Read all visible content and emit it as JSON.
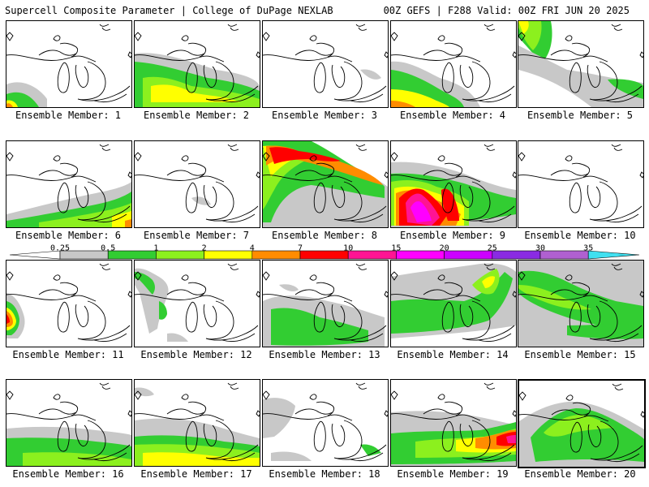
{
  "header": {
    "left": "Supercell Composite Parameter | College of DuPage NEXLAB",
    "right": "00Z GEFS | F288 Valid: 00Z FRI JUN 20 2025"
  },
  "member_label_prefix": "Ensemble Member: ",
  "colors": {
    "gray": "#c8c8c8",
    "green": "#32cd32",
    "lime": "#8cf01e",
    "yellow": "#ffff00",
    "orange": "#ff8c00",
    "red": "#ff0000",
    "deep_pink": "#ff1493",
    "magenta": "#ff00ff",
    "purple": "#8a2be2",
    "orchid": "#b060d0",
    "cyan": "#40e0f0"
  },
  "legend": {
    "ticks": [
      "0.25",
      "0.5",
      "1",
      "2",
      "4",
      "7",
      "10",
      "15",
      "20",
      "25",
      "30",
      "35"
    ],
    "bins": [
      "#c8c8c8",
      "#32cd32",
      "#8cf01e",
      "#ffff00",
      "#ff8c00",
      "#ff0000",
      "#ff1493",
      "#ff00ff",
      "#cc00ff",
      "#8a2be2",
      "#b060d0",
      "#40e0f0"
    ]
  },
  "members": [
    {
      "id": "1"
    },
    {
      "id": "2"
    },
    {
      "id": "3"
    },
    {
      "id": "4"
    },
    {
      "id": "5"
    },
    {
      "id": "6"
    },
    {
      "id": "7"
    },
    {
      "id": "8"
    },
    {
      "id": "9"
    },
    {
      "id": "10"
    },
    {
      "id": "11"
    },
    {
      "id": "12"
    },
    {
      "id": "13"
    },
    {
      "id": "14"
    },
    {
      "id": "15"
    },
    {
      "id": "16"
    },
    {
      "id": "17"
    },
    {
      "id": "18"
    },
    {
      "id": "19"
    },
    {
      "id": "20"
    }
  ]
}
